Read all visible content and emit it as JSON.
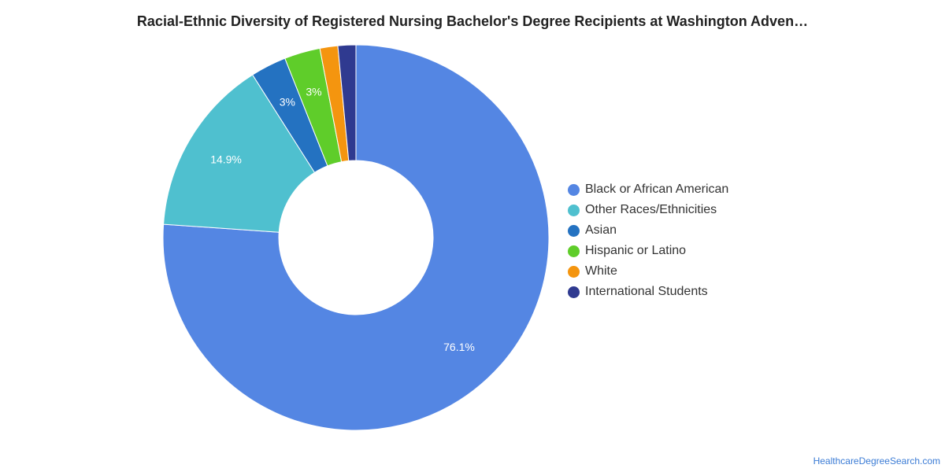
{
  "title": "Racial-Ethnic Diversity of Registered Nursing Bachelor's Degree Recipients at Washington Adven…",
  "source": "HealthcareDegreeSearch.com",
  "chart_data": {
    "type": "pie",
    "variant": "donut",
    "title": "Racial-Ethnic Diversity of Registered Nursing Bachelor's Degree Recipients at Washington Adven…",
    "legend_position": "right",
    "slices": [
      {
        "label": "Black or African American",
        "value": 76.1,
        "data_label": "76.1%",
        "color": "#5486e3"
      },
      {
        "label": "Other Races/Ethnicities",
        "value": 14.9,
        "data_label": "14.9%",
        "color": "#4fc0cf"
      },
      {
        "label": "Asian",
        "value": 3.0,
        "data_label": "3%",
        "color": "#2472c1"
      },
      {
        "label": "Hispanic or Latino",
        "value": 3.0,
        "data_label": "3%",
        "color": "#5fcd2a"
      },
      {
        "label": "White",
        "value": 1.5,
        "data_label": "",
        "color": "#f4950f"
      },
      {
        "label": "International Students",
        "value": 1.5,
        "data_label": "",
        "color": "#2f3a90"
      }
    ]
  }
}
